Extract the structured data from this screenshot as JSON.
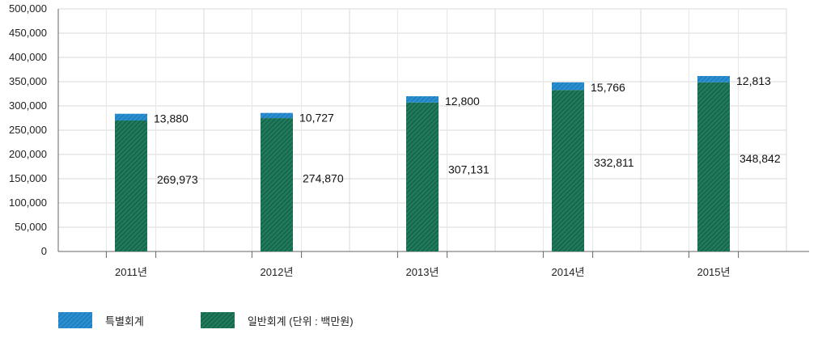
{
  "chart_data": {
    "type": "bar",
    "stacked": true,
    "categories": [
      "2011년",
      "2012년",
      "2013년",
      "2014년",
      "2015년"
    ],
    "series": [
      {
        "name": "일반회계 (단위 : 백만원)",
        "values": [
          269973,
          274870,
          307131,
          332811,
          348842
        ],
        "color": "#1f7a5c"
      },
      {
        "name": "특별회계",
        "values": [
          13880,
          10727,
          12800,
          15766,
          12813
        ],
        "color": "#2a8fd0"
      }
    ],
    "value_labels": {
      "general": [
        "269,973",
        "274,870",
        "307,131",
        "332,811",
        "348,842"
      ],
      "special": [
        "13,880",
        "10,727",
        "12,800",
        "15,766",
        "12,813"
      ]
    },
    "ylim": [
      0,
      500000
    ],
    "yticks": [
      0,
      50000,
      100000,
      150000,
      200000,
      250000,
      300000,
      350000,
      400000,
      450000,
      500000
    ],
    "ytick_labels": [
      "0",
      "50,000",
      "100,000",
      "150,000",
      "200,000",
      "250,000",
      "300,000",
      "350,000",
      "400,000",
      "450,000",
      "500,000"
    ],
    "grid": true,
    "legend_position": "bottom-left",
    "xlabel": "",
    "ylabel": "",
    "title": ""
  },
  "legend": {
    "special_label": "특별회계",
    "general_label": "일반회계 (단위 : 백만원)"
  }
}
